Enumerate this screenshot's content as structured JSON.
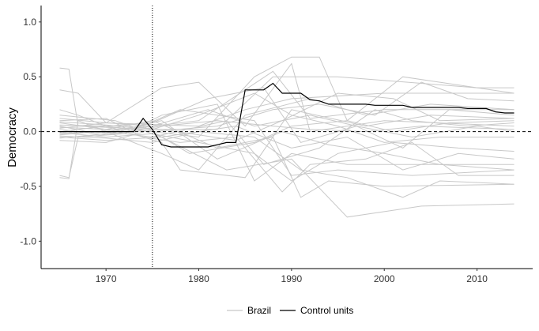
{
  "chart_data": {
    "type": "line",
    "xlabel": "",
    "ylabel": "Democracy",
    "xlim": [
      1963,
      2016
    ],
    "ylim": [
      -1.25,
      1.15
    ],
    "x_ticks": [
      1970,
      1980,
      1990,
      2000,
      2010
    ],
    "y_ticks": [
      -1.0,
      -0.5,
      0.0,
      0.5,
      1.0
    ],
    "x_tick_labels": [
      "1970",
      "1980",
      "1990",
      "2000",
      "2010"
    ],
    "y_tick_labels": [
      "-1.0",
      "-0.5",
      "0.0",
      "0.5",
      "1.0"
    ],
    "grid": false,
    "legend_position": "bottom",
    "legend": [
      {
        "label": "Brazil",
        "color": "#c8c8c8"
      },
      {
        "label": "Control units",
        "color": "#000000"
      }
    ],
    "reference_lines": [
      {
        "orientation": "horizontal",
        "value": 0.0,
        "style": "dashed"
      },
      {
        "orientation": "vertical",
        "value": 1975,
        "style": "dotted"
      }
    ],
    "highlight_series": {
      "name": "Control units",
      "color": "#000000",
      "points": [
        [
          1965,
          0.0
        ],
        [
          1973,
          0.0
        ],
        [
          1974,
          0.12
        ],
        [
          1975,
          0.02
        ],
        [
          1976,
          -0.12
        ],
        [
          1977,
          -0.14
        ],
        [
          1981,
          -0.14
        ],
        [
          1982,
          -0.12
        ],
        [
          1983,
          -0.1
        ],
        [
          1984,
          -0.1
        ],
        [
          1985,
          0.38
        ],
        [
          1987,
          0.38
        ],
        [
          1988,
          0.44
        ],
        [
          1989,
          0.35
        ],
        [
          1991,
          0.35
        ],
        [
          1992,
          0.29
        ],
        [
          1993,
          0.28
        ],
        [
          1994,
          0.25
        ],
        [
          1998,
          0.25
        ],
        [
          1999,
          0.24
        ],
        [
          2002,
          0.24
        ],
        [
          2003,
          0.22
        ],
        [
          2008,
          0.22
        ],
        [
          2009,
          0.21
        ],
        [
          2011,
          0.21
        ],
        [
          2012,
          0.18
        ],
        [
          2013,
          0.17
        ],
        [
          2014,
          0.17
        ]
      ]
    },
    "placebo_series": {
      "color": "#c8c8c8",
      "lines": [
        [
          [
            1965,
            0.58
          ],
          [
            1966,
            0.57
          ],
          [
            1967,
            0.05
          ],
          [
            1975,
            0.02
          ],
          [
            1982,
            0.02
          ],
          [
            1988,
            0.5
          ],
          [
            1995,
            0.5
          ],
          [
            2010,
            0.4
          ],
          [
            2014,
            0.4
          ]
        ],
        [
          [
            1965,
            0.38
          ],
          [
            1967,
            0.35
          ],
          [
            1970,
            0.08
          ],
          [
            1980,
            0.05
          ],
          [
            1985,
            0.2
          ],
          [
            1990,
            0.3
          ],
          [
            2000,
            0.35
          ],
          [
            2014,
            0.35
          ]
        ],
        [
          [
            1965,
            -0.42
          ],
          [
            1966,
            -0.43
          ],
          [
            1967,
            0.1
          ],
          [
            1970,
            0.0
          ],
          [
            1975,
            0.05
          ],
          [
            1980,
            0.1
          ],
          [
            1988,
            0.55
          ],
          [
            1992,
            0.12
          ],
          [
            2000,
            0.2
          ],
          [
            2014,
            0.2
          ]
        ],
        [
          [
            1965,
            -0.4
          ],
          [
            1966,
            -0.42
          ],
          [
            1967,
            -0.05
          ],
          [
            1972,
            -0.02
          ],
          [
            1978,
            0.2
          ],
          [
            1986,
            0.1
          ],
          [
            1990,
            -0.4
          ],
          [
            1995,
            -0.35
          ],
          [
            2003,
            -0.4
          ],
          [
            2014,
            -0.35
          ]
        ],
        [
          [
            1965,
            0.2
          ],
          [
            1967,
            0.15
          ],
          [
            1970,
            0.05
          ],
          [
            1976,
            -0.1
          ],
          [
            1978,
            -0.35
          ],
          [
            1985,
            -0.42
          ],
          [
            1990,
            0.2
          ],
          [
            1998,
            0.05
          ],
          [
            2005,
            0.15
          ],
          [
            2014,
            0.12
          ]
        ],
        [
          [
            1965,
            0.12
          ],
          [
            1970,
            0.08
          ],
          [
            1976,
            0.4
          ],
          [
            1980,
            0.45
          ],
          [
            1985,
            0.05
          ],
          [
            1990,
            0.62
          ],
          [
            1992,
            0.0
          ],
          [
            2000,
            0.1
          ],
          [
            2014,
            0.05
          ]
        ],
        [
          [
            1965,
            0.05
          ],
          [
            1968,
            0.0
          ],
          [
            1972,
            -0.02
          ],
          [
            1976,
            0.15
          ],
          [
            1982,
            0.25
          ],
          [
            1986,
            -0.45
          ],
          [
            1990,
            -0.2
          ],
          [
            1996,
            -0.3
          ],
          [
            2014,
            -0.3
          ]
        ],
        [
          [
            1965,
            -0.05
          ],
          [
            1970,
            -0.08
          ],
          [
            1976,
            -0.05
          ],
          [
            1983,
            -0.35
          ],
          [
            1990,
            -0.25
          ],
          [
            1996,
            -0.78
          ],
          [
            2004,
            -0.68
          ],
          [
            2014,
            -0.66
          ]
        ],
        [
          [
            1965,
            0.0
          ],
          [
            1970,
            0.05
          ],
          [
            1975,
            0.0
          ],
          [
            1980,
            -0.05
          ],
          [
            1986,
            0.5
          ],
          [
            1990,
            0.68
          ],
          [
            1993,
            0.68
          ],
          [
            1996,
            0.1
          ],
          [
            2002,
            0.5
          ],
          [
            2006,
            0.45
          ],
          [
            2014,
            0.35
          ]
        ],
        [
          [
            1965,
            0.08
          ],
          [
            1970,
            0.02
          ],
          [
            1975,
            0.1
          ],
          [
            1982,
            -0.15
          ],
          [
            1988,
            -0.05
          ],
          [
            1991,
            -0.6
          ],
          [
            1994,
            -0.45
          ],
          [
            2000,
            -0.5
          ],
          [
            2014,
            -0.48
          ]
        ],
        [
          [
            1965,
            -0.02
          ],
          [
            1970,
            0.0
          ],
          [
            1976,
            -0.2
          ],
          [
            1980,
            -0.35
          ],
          [
            1985,
            0.15
          ],
          [
            1992,
            0.3
          ],
          [
            1998,
            0.15
          ],
          [
            2005,
            0.25
          ],
          [
            2014,
            0.2
          ]
        ],
        [
          [
            1965,
            0.15
          ],
          [
            1971,
            0.1
          ],
          [
            1976,
            -0.05
          ],
          [
            1984,
            0.05
          ],
          [
            1990,
            -0.15
          ],
          [
            1996,
            -0.05
          ],
          [
            2002,
            -0.35
          ],
          [
            2008,
            -0.2
          ],
          [
            2014,
            -0.25
          ]
        ],
        [
          [
            1965,
            -0.08
          ],
          [
            1970,
            -0.1
          ],
          [
            1975,
            0.02
          ],
          [
            1980,
            0.15
          ],
          [
            1986,
            0.35
          ],
          [
            1990,
            0.15
          ],
          [
            1995,
            0.05
          ],
          [
            2000,
            -0.1
          ],
          [
            2006,
            -0.05
          ],
          [
            2014,
            -0.05
          ]
        ],
        [
          [
            1965,
            0.1
          ],
          [
            1970,
            0.12
          ],
          [
            1974,
            -0.05
          ],
          [
            1978,
            -0.1
          ],
          [
            1984,
            -0.05
          ],
          [
            1989,
            -0.55
          ],
          [
            1992,
            -0.3
          ],
          [
            1998,
            -0.25
          ],
          [
            2003,
            -0.1
          ],
          [
            2008,
            -0.4
          ],
          [
            2014,
            -0.4
          ]
        ],
        [
          [
            1965,
            0.02
          ],
          [
            1970,
            -0.03
          ],
          [
            1976,
            0.05
          ],
          [
            1982,
            0.1
          ],
          [
            1988,
            0.05
          ],
          [
            1992,
            0.02
          ],
          [
            1998,
            0.0
          ],
          [
            2004,
            0.05
          ],
          [
            2014,
            0.02
          ]
        ],
        [
          [
            1965,
            -0.03
          ],
          [
            1969,
            0.0
          ],
          [
            1974,
            0.05
          ],
          [
            1979,
            -0.2
          ],
          [
            1986,
            -0.1
          ],
          [
            1990,
            0.05
          ],
          [
            1996,
            0.1
          ],
          [
            2001,
            0.0
          ],
          [
            2007,
            0.08
          ],
          [
            2014,
            0.1
          ]
        ],
        [
          [
            1965,
            0.06
          ],
          [
            1970,
            0.05
          ],
          [
            1975,
            0.08
          ],
          [
            1981,
            0.3
          ],
          [
            1987,
            0.4
          ],
          [
            1991,
            -0.1
          ],
          [
            1997,
            0.05
          ],
          [
            2002,
            -0.15
          ],
          [
            2007,
            0.2
          ],
          [
            2014,
            0.15
          ]
        ],
        [
          [
            1965,
            -0.01
          ],
          [
            1970,
            -0.05
          ],
          [
            1975,
            -0.02
          ],
          [
            1980,
            -0.1
          ],
          [
            1986,
            -0.2
          ],
          [
            1990,
            -0.45
          ],
          [
            1995,
            -0.2
          ],
          [
            2001,
            -0.1
          ],
          [
            2008,
            -0.15
          ],
          [
            2014,
            -0.18
          ]
        ],
        [
          [
            1965,
            0.04
          ],
          [
            1970,
            0.02
          ],
          [
            1975,
            0.0
          ],
          [
            1982,
            0.05
          ],
          [
            1988,
            0.2
          ],
          [
            1993,
            0.25
          ],
          [
            1999,
            0.15
          ],
          [
            2004,
            0.45
          ],
          [
            2009,
            0.3
          ],
          [
            2014,
            0.28
          ]
        ],
        [
          [
            1965,
            -0.06
          ],
          [
            1970,
            -0.02
          ],
          [
            1976,
            0.1
          ],
          [
            1982,
            -0.25
          ],
          [
            1989,
            0.0
          ],
          [
            1994,
            -0.12
          ],
          [
            2000,
            -0.2
          ],
          [
            2006,
            -0.3
          ],
          [
            2014,
            -0.35
          ]
        ],
        [
          [
            1965,
            0.0
          ],
          [
            1970,
            0.0
          ],
          [
            1975,
            -0.05
          ],
          [
            1983,
            0.1
          ],
          [
            1987,
            -0.3
          ],
          [
            1993,
            -0.15
          ],
          [
            1999,
            0.2
          ],
          [
            2003,
            0.1
          ],
          [
            2009,
            0.05
          ],
          [
            2014,
            0.08
          ]
        ],
        [
          [
            1965,
            0.09
          ],
          [
            1970,
            0.06
          ],
          [
            1976,
            0.02
          ],
          [
            1984,
            -0.08
          ],
          [
            1989,
            0.1
          ],
          [
            1995,
            0.35
          ],
          [
            2001,
            0.3
          ],
          [
            2006,
            0.1
          ],
          [
            2014,
            0.12
          ]
        ],
        [
          [
            1965,
            -0.04
          ],
          [
            1970,
            -0.06
          ],
          [
            1975,
            -0.1
          ],
          [
            1980,
            0.0
          ],
          [
            1986,
            -0.05
          ],
          [
            1991,
            -0.35
          ],
          [
            1996,
            -0.42
          ],
          [
            2002,
            -0.6
          ],
          [
            2006,
            -0.45
          ],
          [
            2014,
            -0.48
          ]
        ],
        [
          [
            1965,
            0.03
          ],
          [
            1970,
            0.08
          ],
          [
            1975,
            0.05
          ],
          [
            1981,
            0.2
          ],
          [
            1986,
            0.05
          ],
          [
            1992,
            0.15
          ],
          [
            1997,
            0.05
          ],
          [
            2003,
            -0.05
          ],
          [
            2010,
            0.05
          ],
          [
            2014,
            0.0
          ]
        ]
      ]
    }
  }
}
